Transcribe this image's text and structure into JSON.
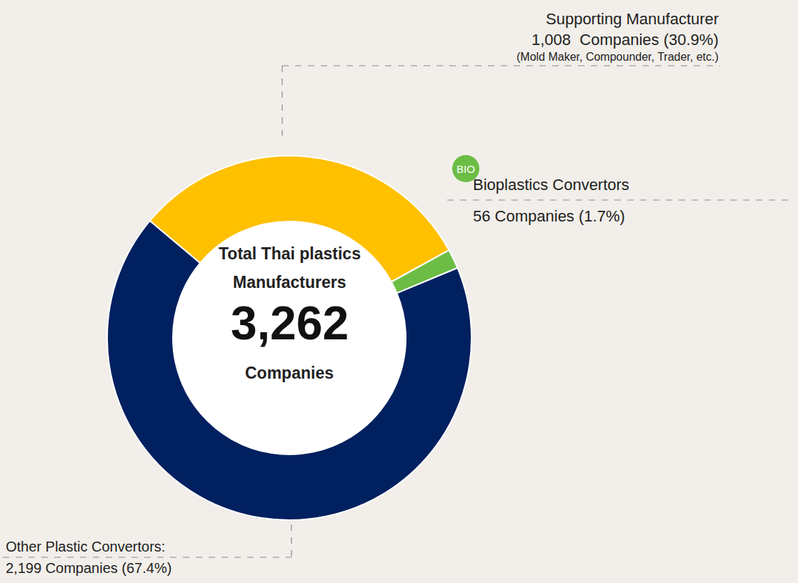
{
  "chart_data": {
    "type": "pie",
    "categories": [
      "Supporting Manufacturer",
      "Bioplastics Convertors",
      "Other Plastic Convertors:"
    ],
    "values": [
      1008,
      56,
      2199
    ],
    "value_labels": [
      "1,008  Companies (30.9%)",
      "56 Companies (1.7%)",
      "2,199 Companies (67.4%)"
    ],
    "colors": [
      "#FFC000",
      "#6CBD45",
      "#002060"
    ],
    "notes": [
      "(Mold Maker, Compounder, Trader, etc.)",
      null,
      null
    ],
    "badges": [
      null,
      "BIO",
      null
    ],
    "center": {
      "heading": [
        "Total Thai plastics",
        "Manufacturers"
      ],
      "total": 3262,
      "total_label": "3,262",
      "unit": "Companies"
    }
  }
}
